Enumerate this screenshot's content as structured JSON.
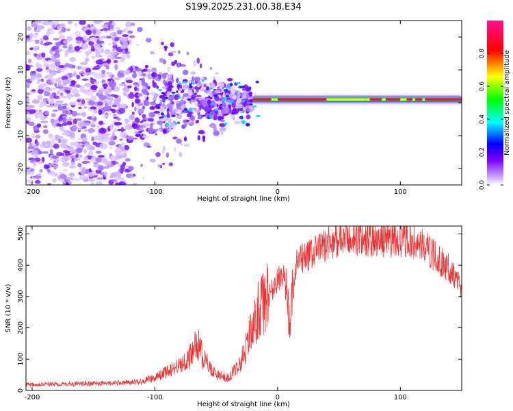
{
  "figure_title": "S199.2025.231.00.38.E34",
  "chart_data": [
    {
      "type": "heatmap",
      "title": "S199.2025.231.00.38.E34",
      "xlabel": "Height of straight line (km)",
      "ylabel": "Frequency (Hz)",
      "xlim": [
        -205,
        150
      ],
      "ylim": [
        -25,
        25
      ],
      "xticks": [
        -200,
        -100,
        0,
        100
      ],
      "yticks": [
        -20,
        -10,
        0,
        10,
        20
      ],
      "colorbar": {
        "label": "Normalized spectral amplitude",
        "range": [
          0,
          1
        ],
        "ticks": [
          0.0,
          0.2,
          0.4,
          0.6,
          0.8
        ],
        "colors": [
          "#ffffff",
          "#8000ff",
          "#0000ff",
          "#00ffff",
          "#00ff00",
          "#ffff00",
          "#ff0000",
          "#ff0080"
        ]
      },
      "features": {
        "noise_region_km": [
          -205,
          -120
        ],
        "transition_region_km": [
          -120,
          -20
        ],
        "signal_line_hz": 1.0,
        "strong_signal_region_km": [
          -20,
          150
        ]
      }
    },
    {
      "type": "line",
      "xlabel": "Height of straight line (km)",
      "ylabel": "SNR (10 * v/v)",
      "xlim": [
        -205,
        150
      ],
      "ylim": [
        0,
        525
      ],
      "xticks": [
        -200,
        -100,
        0,
        100
      ],
      "yticks": [
        0,
        100,
        200,
        300,
        400,
        500
      ],
      "color": "#ee3333",
      "x": [
        -205,
        -180,
        -150,
        -120,
        -110,
        -100,
        -90,
        -80,
        -70,
        -66,
        -60,
        -50,
        -40,
        -30,
        -25,
        -20,
        -15,
        -10,
        -5,
        0,
        5,
        10,
        15,
        20,
        30,
        40,
        50,
        60,
        80,
        100,
        110,
        120,
        130,
        140,
        150
      ],
      "values": [
        20,
        20,
        22,
        25,
        30,
        40,
        60,
        80,
        110,
        160,
        100,
        50,
        40,
        90,
        150,
        200,
        260,
        280,
        320,
        350,
        380,
        200,
        400,
        420,
        440,
        470,
        480,
        485,
        480,
        480,
        475,
        460,
        420,
        390,
        330
      ]
    }
  ]
}
